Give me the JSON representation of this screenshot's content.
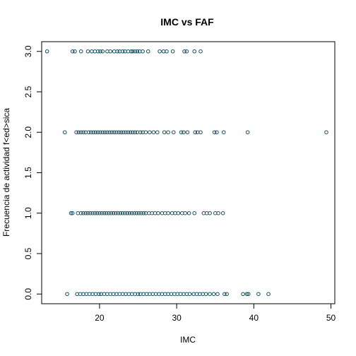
{
  "chart_data": {
    "type": "scatter",
    "title": "IMC vs FAF",
    "xlabel": "IMC",
    "ylabel": "Frecuencia de actividad f<ed>sica",
    "xlim": [
      12.5,
      50.5
    ],
    "ylim": [
      -0.12,
      3.12
    ],
    "xticks": [
      20,
      30,
      40,
      50
    ],
    "yticks": [
      0.0,
      0.5,
      1.0,
      1.5,
      2.0,
      2.5,
      3.0
    ],
    "ytick_labels": [
      "0.0",
      "0.5",
      "1.0",
      "1.5",
      "2.0",
      "2.5",
      "3.0"
    ],
    "grid": false,
    "marker": "open-circle",
    "color": "#1a5064",
    "series": [
      {
        "y": 3.0,
        "x": [
          13.2,
          16.5,
          16.8,
          17.6,
          18.5,
          19.0,
          19.4,
          19.8,
          20.1,
          20.4,
          21.0,
          21.4,
          21.9,
          22.3,
          22.6,
          23.0,
          23.3,
          23.7,
          24.1,
          24.3,
          24.6,
          24.9,
          25.2,
          25.6,
          26.3,
          27.8,
          28.3,
          28.7,
          29.5,
          31.0,
          31.3,
          32.3,
          33.1
        ]
      },
      {
        "y": 2.0,
        "x": [
          15.5,
          17.0,
          17.3,
          17.6,
          17.9,
          18.2,
          18.6,
          18.9,
          19.2,
          19.5,
          19.8,
          20.1,
          20.4,
          20.7,
          21.0,
          21.3,
          21.6,
          21.9,
          22.2,
          22.5,
          22.8,
          23.1,
          23.4,
          23.7,
          24.0,
          24.3,
          24.6,
          24.9,
          25.3,
          25.6,
          26.0,
          26.5,
          27.0,
          27.5,
          28.4,
          28.9,
          29.6,
          30.6,
          30.9,
          31.4,
          32.4,
          32.7,
          33.1,
          34.9,
          35.2,
          36.1,
          39.2,
          49.4
        ]
      },
      {
        "y": 1.0,
        "x": [
          16.3,
          16.5,
          17.2,
          17.6,
          17.9,
          18.2,
          18.5,
          18.8,
          19.1,
          19.4,
          19.7,
          20.0,
          20.3,
          20.6,
          20.9,
          21.2,
          21.5,
          21.8,
          22.1,
          22.4,
          22.7,
          23.0,
          23.3,
          23.6,
          23.9,
          24.2,
          24.5,
          24.8,
          25.1,
          25.4,
          25.7,
          26.0,
          26.4,
          26.8,
          27.2,
          27.6,
          28.1,
          28.5,
          28.9,
          29.4,
          29.8,
          30.2,
          30.7,
          31.1,
          31.6,
          32.3,
          33.5,
          33.9,
          34.3,
          35.0,
          35.4,
          36.0
        ]
      },
      {
        "y": 0.0,
        "x": [
          15.8,
          17.1,
          17.5,
          17.9,
          18.3,
          18.7,
          19.1,
          19.5,
          19.9,
          20.2,
          20.6,
          21.0,
          21.4,
          21.8,
          22.2,
          22.6,
          23.0,
          23.4,
          23.8,
          24.2,
          24.6,
          25.0,
          25.3,
          25.7,
          26.1,
          26.5,
          26.9,
          27.3,
          27.7,
          28.1,
          28.5,
          28.9,
          29.3,
          29.7,
          30.1,
          30.5,
          30.9,
          31.3,
          31.7,
          32.2,
          32.6,
          33.0,
          33.4,
          33.8,
          34.3,
          34.8,
          35.3,
          36.2,
          36.5,
          38.6,
          39.1,
          39.3,
          40.6,
          41.9
        ]
      }
    ]
  }
}
